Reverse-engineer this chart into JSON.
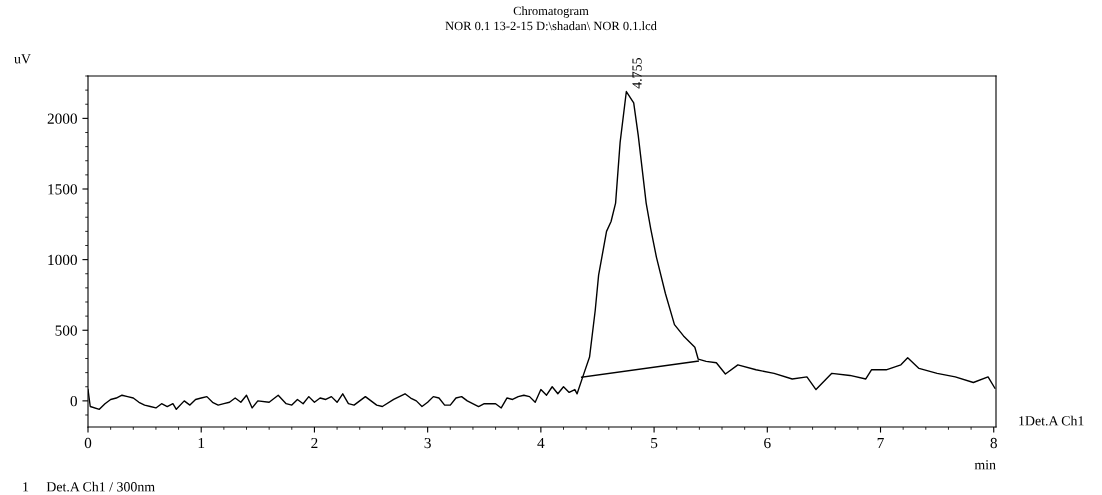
{
  "chart_data": {
    "type": "line",
    "title": "Chromatogram",
    "subtitle": "NOR 0.1 13-2-15 D:\\shadan\\ NOR 0.1.lcd",
    "xlabel": "min",
    "ylabel": "uV",
    "xlim": [
      0,
      8.02
    ],
    "ylim": [
      -185,
      2300
    ],
    "xticks": [
      0,
      1,
      2,
      3,
      4,
      5,
      6,
      7,
      8
    ],
    "yticks": [
      0,
      500,
      1000,
      1500,
      2000
    ],
    "grid": false,
    "marker": "none",
    "line_style": "solid",
    "series": [
      {
        "color": "#000000",
        "x": [
          0,
          0.02,
          0.1,
          0.15,
          0.2,
          0.25,
          0.3,
          0.35,
          0.4,
          0.45,
          0.5,
          0.55,
          0.6,
          0.65,
          0.7,
          0.75,
          0.78,
          0.85,
          0.9,
          0.95,
          1.0,
          1.05,
          1.1,
          1.15,
          1.2,
          1.25,
          1.3,
          1.35,
          1.4,
          1.45,
          1.5,
          1.6,
          1.68,
          1.75,
          1.8,
          1.85,
          1.9,
          1.95,
          2.0,
          2.05,
          2.1,
          2.15,
          2.2,
          2.25,
          2.3,
          2.35,
          2.45,
          2.55,
          2.6,
          2.7,
          2.8,
          2.85,
          2.9,
          2.95,
          3.0,
          3.05,
          3.1,
          3.15,
          3.2,
          3.25,
          3.3,
          3.35,
          3.45,
          3.5,
          3.6,
          3.65,
          3.7,
          3.75,
          3.8,
          3.85,
          3.9,
          3.95,
          4.0,
          4.05,
          4.1,
          4.15,
          4.2,
          4.25,
          4.3,
          4.32,
          4.37,
          4.43,
          4.48,
          4.51,
          4.58,
          4.62,
          4.66,
          4.7,
          4.755,
          4.82,
          4.86,
          4.93,
          4.97,
          5.02,
          5.1,
          5.18,
          5.26,
          5.36,
          5.39,
          5.46,
          5.55,
          5.63,
          5.74,
          5.9,
          6.06,
          6.22,
          6.35,
          6.43,
          6.57,
          6.73,
          6.87,
          6.92,
          7.05,
          7.18,
          7.24,
          7.34,
          7.5,
          7.66,
          7.82,
          7.95,
          8.01
        ],
        "values": [
          80,
          -40,
          -60,
          -20,
          10,
          20,
          40,
          30,
          20,
          -10,
          -30,
          -40,
          -50,
          -20,
          -40,
          -20,
          -60,
          0,
          -30,
          10,
          20,
          30,
          -10,
          -30,
          -20,
          -10,
          20,
          -10,
          40,
          -50,
          0,
          -10,
          40,
          -20,
          -30,
          10,
          -20,
          30,
          -10,
          20,
          10,
          30,
          -10,
          50,
          -20,
          -30,
          30,
          -30,
          -40,
          10,
          50,
          20,
          0,
          -40,
          -10,
          30,
          20,
          -30,
          -30,
          20,
          30,
          0,
          -40,
          -20,
          -20,
          -50,
          20,
          10,
          30,
          40,
          30,
          -10,
          80,
          40,
          100,
          50,
          100,
          60,
          80,
          50,
          170,
          310,
          640,
          890,
          1200,
          1270,
          1400,
          1830,
          2190,
          2110,
          1880,
          1400,
          1220,
          1020,
          760,
          540,
          460,
          380,
          295,
          280,
          270,
          190,
          255,
          220,
          195,
          155,
          170,
          80,
          195,
          180,
          155,
          220,
          220,
          255,
          305,
          230,
          195,
          170,
          130,
          170,
          90
        ]
      },
      {
        "color": "#000000",
        "x": [
          4.36,
          5.39
        ],
        "values": [
          168,
          282
        ]
      }
    ],
    "annotations": [
      {
        "text": "4.755",
        "x": 4.755,
        "y": 2190
      },
      "1     Det.A Ch1 / 300nm",
      "1Det.A Ch1"
    ]
  }
}
